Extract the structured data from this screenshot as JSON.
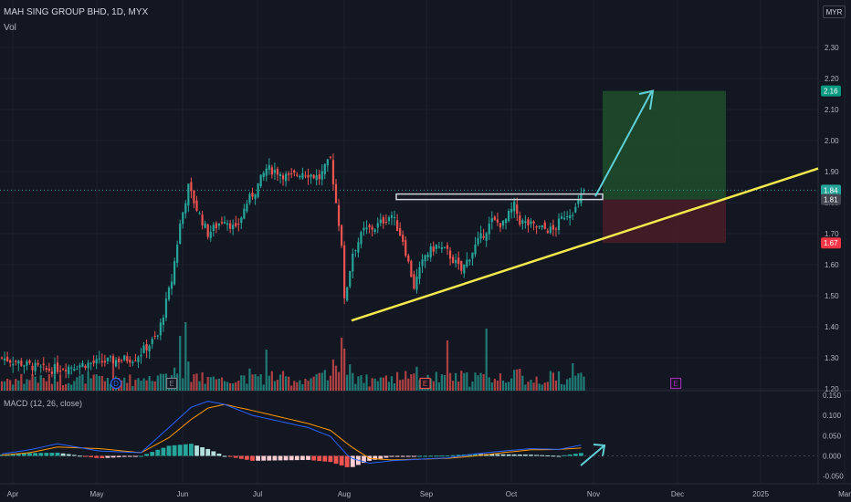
{
  "header": {
    "symbol_line": "MAH SING GROUP BHD, 1D, MYX",
    "volume_label": "Vol",
    "currency": "MYR"
  },
  "colors": {
    "bg": "#131722",
    "up": "#26a69a",
    "down": "#ef5350",
    "trendline": "#f5e94d",
    "projection_arrow": "#5fd0d8",
    "target_zone": "#1e4d2b",
    "stop_zone": "#4a1c26",
    "macd_line": "#2962ff",
    "signal_line": "#ff9800"
  },
  "chart_data": [
    {
      "type": "candlestick",
      "axis_ticks_y": [
        "2.30",
        "2.20",
        "2.10",
        "2.00",
        "1.90",
        "1.80",
        "1.70",
        "1.60",
        "1.50",
        "1.40",
        "1.30",
        "1.20"
      ],
      "ylim": [
        1.16,
        2.36
      ],
      "axis_ticks_x": [
        "Apr",
        "May",
        "Jun",
        "Jul",
        "Aug",
        "Sep",
        "Oct",
        "Nov",
        "Dec",
        "2025",
        "Mar"
      ],
      "price_labels": [
        {
          "value": 2.16,
          "text": "2.16",
          "color": "#089981"
        },
        {
          "value": 1.84,
          "text": "1.84",
          "color": "#26a69a"
        },
        {
          "value": 1.81,
          "text": "1.81",
          "color": "#434651"
        },
        {
          "value": 1.67,
          "text": "1.67",
          "color": "#f23645"
        }
      ],
      "current_price": 1.84,
      "breakout_level": 1.81,
      "target": 2.16,
      "stop": 1.67,
      "price_path": [
        {
          "d": 0,
          "c": 1.3
        },
        {
          "d": 16,
          "c": 1.26
        },
        {
          "d": 30,
          "c": 1.28
        },
        {
          "d": 48,
          "c": 1.3
        },
        {
          "d": 56,
          "c": 1.37
        },
        {
          "d": 61,
          "c": 1.55
        },
        {
          "d": 64,
          "c": 1.73
        },
        {
          "d": 67,
          "c": 1.85
        },
        {
          "d": 70,
          "c": 1.78
        },
        {
          "d": 74,
          "c": 1.7
        },
        {
          "d": 80,
          "c": 1.75
        },
        {
          "d": 84,
          "c": 1.71
        },
        {
          "d": 88,
          "c": 1.8
        },
        {
          "d": 91,
          "c": 1.84
        },
        {
          "d": 95,
          "c": 1.91
        },
        {
          "d": 99,
          "c": 1.9
        },
        {
          "d": 103,
          "c": 1.88
        },
        {
          "d": 108,
          "c": 1.9
        },
        {
          "d": 114,
          "c": 1.88
        },
        {
          "d": 118,
          "c": 1.94
        },
        {
          "d": 120,
          "c": 1.8
        },
        {
          "d": 122,
          "c": 1.67
        },
        {
          "d": 123,
          "c": 1.48
        },
        {
          "d": 126,
          "c": 1.64
        },
        {
          "d": 130,
          "c": 1.71
        },
        {
          "d": 134,
          "c": 1.72
        },
        {
          "d": 138,
          "c": 1.75
        },
        {
          "d": 140,
          "c": 1.76
        },
        {
          "d": 144,
          "c": 1.68
        },
        {
          "d": 148,
          "c": 1.53
        },
        {
          "d": 152,
          "c": 1.63
        },
        {
          "d": 156,
          "c": 1.66
        },
        {
          "d": 160,
          "c": 1.64
        },
        {
          "d": 165,
          "c": 1.58
        },
        {
          "d": 170,
          "c": 1.66
        },
        {
          "d": 176,
          "c": 1.74
        },
        {
          "d": 180,
          "c": 1.73
        },
        {
          "d": 184,
          "c": 1.79
        },
        {
          "d": 186,
          "c": 1.74
        },
        {
          "d": 192,
          "c": 1.72
        },
        {
          "d": 198,
          "c": 1.71
        },
        {
          "d": 202,
          "c": 1.76
        },
        {
          "d": 206,
          "c": 1.78
        },
        {
          "d": 209,
          "c": 1.84
        }
      ],
      "events": [
        {
          "label": "D",
          "day": 41,
          "color": "#2962ff",
          "shape": "circle"
        },
        {
          "label": "E",
          "day": 61,
          "color": "#787b86",
          "shape": "square"
        },
        {
          "label": "E",
          "day": 152,
          "color": "#ef5350",
          "shape": "square"
        },
        {
          "label": "E",
          "day": 242,
          "color": "#9c27b0",
          "shape": "square"
        }
      ]
    },
    {
      "type": "macd",
      "title": "MACD (12, 26, close)",
      "axis_ticks_y": [
        "0.150",
        "0.100",
        "0.050",
        "0.000",
        "-0.050"
      ],
      "ylim": [
        -0.07,
        0.155
      ],
      "macd_path": [
        {
          "d": 0,
          "v": 0.005
        },
        {
          "d": 10,
          "v": 0.015
        },
        {
          "d": 20,
          "v": 0.03
        },
        {
          "d": 35,
          "v": 0.012
        },
        {
          "d": 50,
          "v": 0.008
        },
        {
          "d": 60,
          "v": 0.07
        },
        {
          "d": 68,
          "v": 0.12
        },
        {
          "d": 74,
          "v": 0.135
        },
        {
          "d": 80,
          "v": 0.127
        },
        {
          "d": 90,
          "v": 0.1
        },
        {
          "d": 100,
          "v": 0.085
        },
        {
          "d": 110,
          "v": 0.07
        },
        {
          "d": 118,
          "v": 0.048
        },
        {
          "d": 125,
          "v": -0.005
        },
        {
          "d": 132,
          "v": -0.018
        },
        {
          "d": 140,
          "v": -0.012
        },
        {
          "d": 150,
          "v": -0.008
        },
        {
          "d": 160,
          "v": -0.005
        },
        {
          "d": 170,
          "v": 0.005
        },
        {
          "d": 180,
          "v": 0.012
        },
        {
          "d": 190,
          "v": 0.018
        },
        {
          "d": 200,
          "v": 0.016
        },
        {
          "d": 209,
          "v": 0.028
        }
      ],
      "signal_path": [
        {
          "d": 0,
          "v": 0.002
        },
        {
          "d": 10,
          "v": 0.008
        },
        {
          "d": 20,
          "v": 0.022
        },
        {
          "d": 35,
          "v": 0.018
        },
        {
          "d": 50,
          "v": 0.008
        },
        {
          "d": 60,
          "v": 0.045
        },
        {
          "d": 68,
          "v": 0.09
        },
        {
          "d": 74,
          "v": 0.118
        },
        {
          "d": 80,
          "v": 0.127
        },
        {
          "d": 90,
          "v": 0.112
        },
        {
          "d": 100,
          "v": 0.096
        },
        {
          "d": 110,
          "v": 0.08
        },
        {
          "d": 118,
          "v": 0.063
        },
        {
          "d": 125,
          "v": 0.025
        },
        {
          "d": 132,
          "v": -0.006
        },
        {
          "d": 140,
          "v": -0.01
        },
        {
          "d": 150,
          "v": -0.008
        },
        {
          "d": 160,
          "v": -0.006
        },
        {
          "d": 170,
          "v": 0.0
        },
        {
          "d": 180,
          "v": 0.008
        },
        {
          "d": 190,
          "v": 0.015
        },
        {
          "d": 200,
          "v": 0.016
        },
        {
          "d": 209,
          "v": 0.02
        }
      ]
    }
  ]
}
